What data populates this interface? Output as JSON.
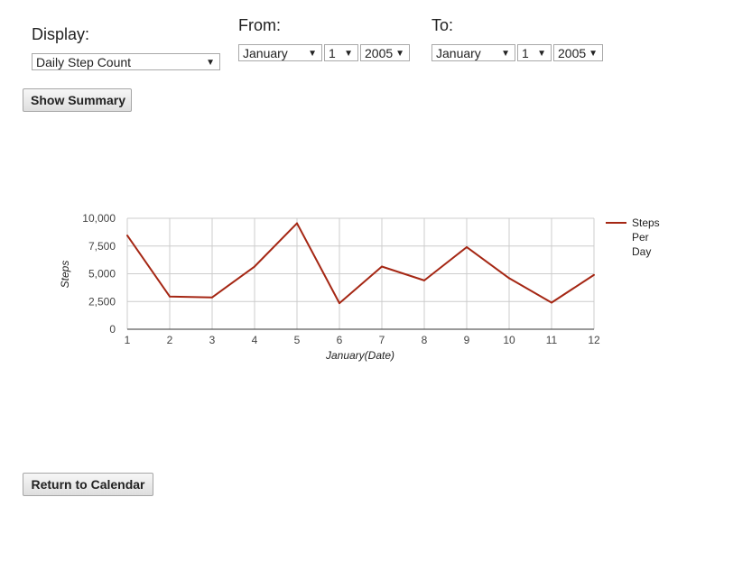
{
  "display": {
    "label": "Display:",
    "selected": "Daily Step Count"
  },
  "from": {
    "label": "From:",
    "month": "January",
    "day": "1",
    "year": "2005"
  },
  "to": {
    "label": "To:",
    "month": "January",
    "day": "1",
    "year": "2005"
  },
  "buttons": {
    "show_summary": "Show Summary",
    "return_calendar": "Return to Calendar"
  },
  "icons": {
    "dropdown_arrow": "▼"
  },
  "chart_data": {
    "type": "line",
    "x": [
      1,
      2,
      3,
      4,
      5,
      6,
      7,
      8,
      9,
      10,
      11,
      12
    ],
    "x_tick_labels": [
      "1",
      "2",
      "3",
      "4",
      "5",
      "6",
      "7",
      "8",
      "9",
      "10",
      "11",
      "12"
    ],
    "series": [
      {
        "name": "Steps Per Day",
        "color": "#a52714",
        "values": [
          8450,
          2950,
          2870,
          5650,
          9550,
          2350,
          5650,
          4400,
          7400,
          4600,
          2400,
          4900
        ]
      }
    ],
    "xlabel": "January(Date)",
    "ylabel": "Steps",
    "ylim": [
      0,
      10000
    ],
    "y_ticks": [
      0,
      2500,
      5000,
      7500,
      10000
    ],
    "y_tick_labels": [
      "0",
      "2,500",
      "5,000",
      "7,500",
      "10,000"
    ],
    "legend_position": "right",
    "legend_lines": [
      "Steps",
      "Per",
      "Day"
    ],
    "grid": true
  }
}
